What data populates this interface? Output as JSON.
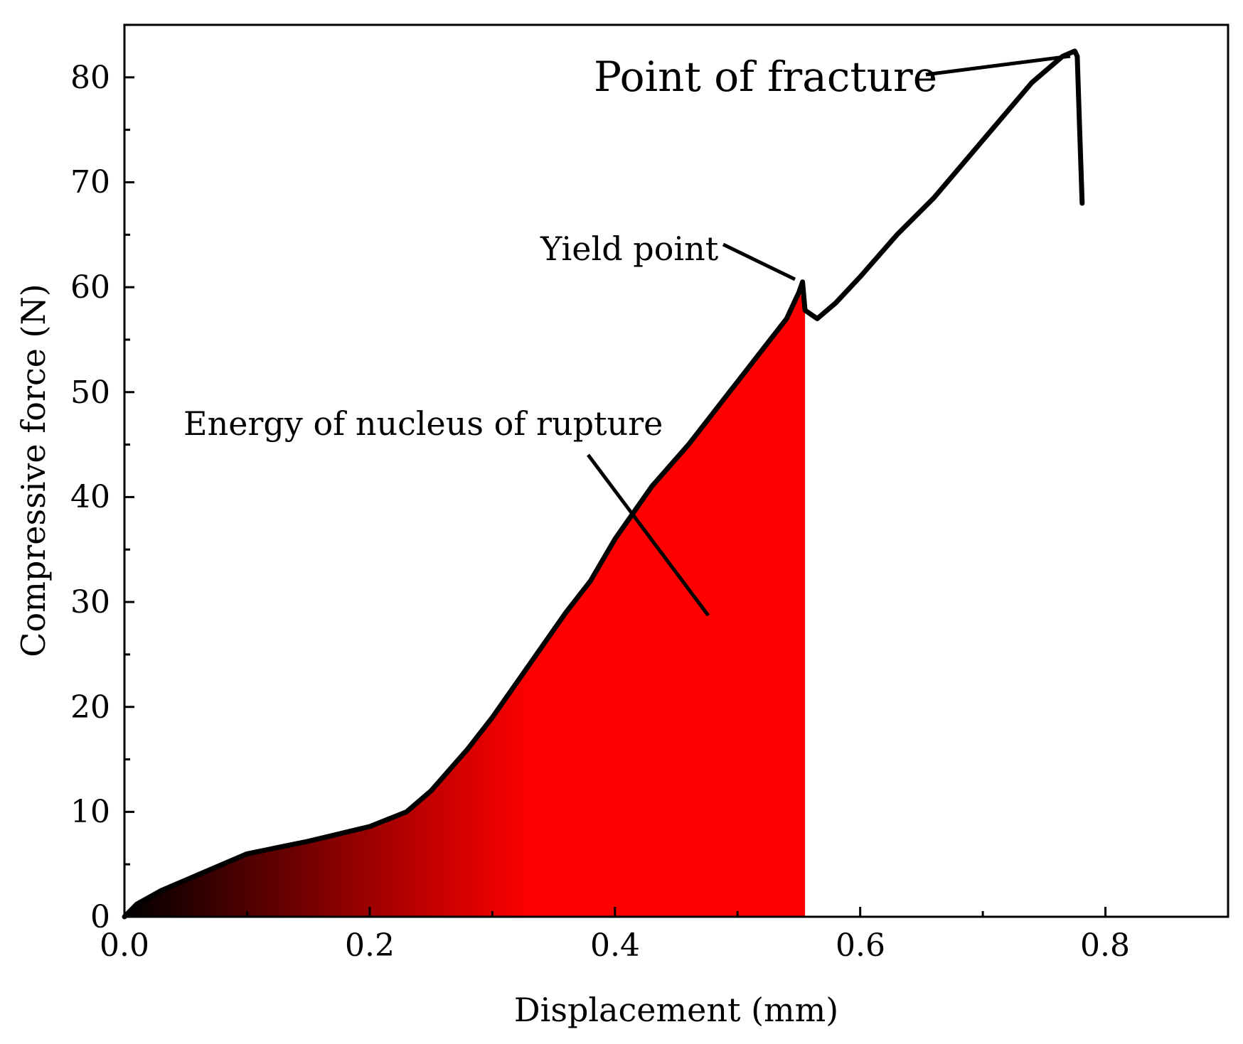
{
  "chart_data": {
    "type": "line",
    "xlabel": "Displacement (mm)",
    "ylabel": "Compressive force (N)",
    "xlim": [
      0,
      0.9
    ],
    "ylim": [
      0,
      85
    ],
    "xticks": [
      "0.0",
      "0.2",
      "0.4",
      "0.6",
      "0.8"
    ],
    "yticks": [
      "0",
      "10",
      "20",
      "30",
      "40",
      "50",
      "60",
      "70",
      "80"
    ],
    "grid": false,
    "legend": "none",
    "series": [
      {
        "x": [
          0.0,
          0.01,
          0.03,
          0.06,
          0.1,
          0.15,
          0.2,
          0.23,
          0.25,
          0.28,
          0.3,
          0.33,
          0.36,
          0.38,
          0.4,
          0.43,
          0.46,
          0.5,
          0.52,
          0.54,
          0.55,
          0.553,
          0.555,
          0.565,
          0.58,
          0.6,
          0.63,
          0.66,
          0.7,
          0.74,
          0.765,
          0.775,
          0.777,
          0.779,
          0.781
        ],
        "y": [
          0.0,
          1.2,
          2.5,
          4.0,
          6.0,
          7.2,
          8.6,
          10.0,
          12.0,
          16.0,
          19.0,
          24.0,
          29.0,
          32.0,
          36.0,
          41.0,
          45.0,
          51.0,
          54.0,
          57.0,
          59.5,
          60.5,
          57.8,
          57.0,
          58.5,
          61.0,
          65.0,
          68.5,
          74.0,
          79.5,
          82.0,
          82.5,
          82.0,
          75.0,
          68.0
        ]
      }
    ],
    "shaded_region": {
      "label": "Energy of nucleus of rupture",
      "x_from": 0.0,
      "x_to": 0.555,
      "gradient_colors": [
        "#000000",
        "#c40000",
        "#ff0000"
      ]
    },
    "annotations": [
      {
        "text": "Point of fracture",
        "target_x": 0.775,
        "target_y": 82.5
      },
      {
        "text": "Yield point",
        "target_x": 0.548,
        "target_y": 60.5
      },
      {
        "text": "Energy of nucleus of rupture",
        "target_x": 0.475,
        "target_y": 29.0
      }
    ],
    "colors": {
      "line": "#000000",
      "fill_end": "#ff0000"
    }
  }
}
